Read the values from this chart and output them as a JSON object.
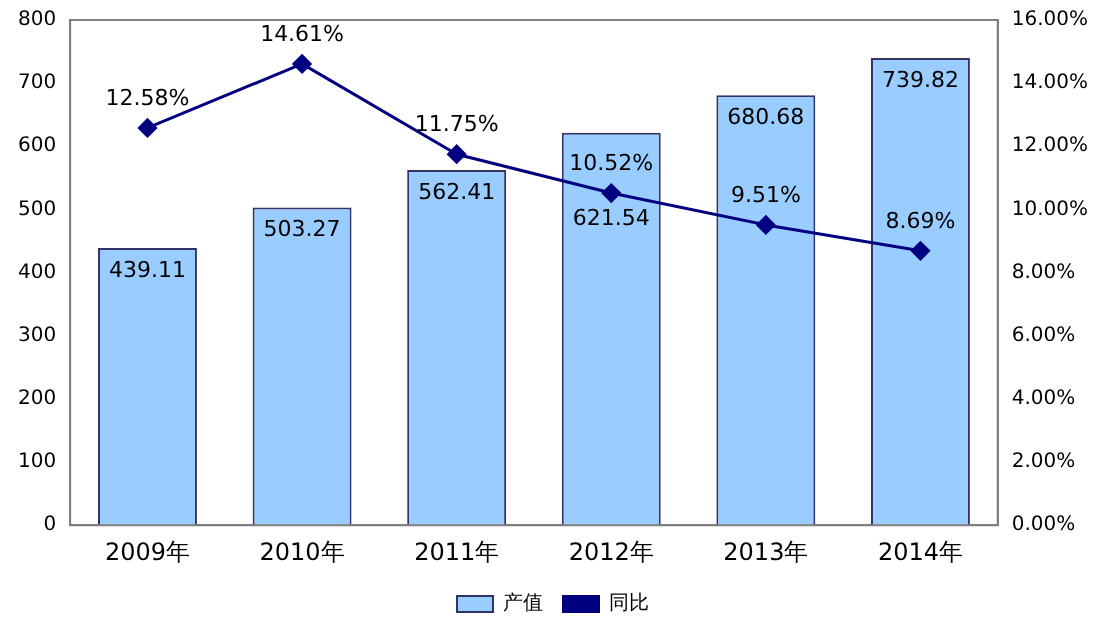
{
  "chart_data": {
    "type": "bar",
    "categories": [
      "2009年",
      "2010年",
      "2011年",
      "2012年",
      "2013年",
      "2014年"
    ],
    "series": [
      {
        "name": "产值",
        "color": "#99ccff",
        "values": [
          439.11,
          503.27,
          562.41,
          621.54,
          680.68,
          739.82
        ],
        "value_labels": [
          "439.11",
          "503.27",
          "562.41",
          "621.54",
          "680.68",
          "739.82"
        ]
      },
      {
        "name": "同比",
        "type": "line",
        "axis": "y2",
        "color": "#000080",
        "values": [
          12.58,
          14.61,
          11.75,
          10.52,
          9.51,
          8.69
        ],
        "value_labels": [
          "12.58%",
          "14.61%",
          "11.75%",
          "10.52%",
          "9.51%",
          "8.69%"
        ]
      }
    ],
    "ylim": [
      0,
      800
    ],
    "yticks": [
      0,
      100,
      200,
      300,
      400,
      500,
      600,
      700,
      800
    ],
    "y2lim": [
      0,
      16
    ],
    "y2ticks": [
      {
        "value": 0,
        "label": "0.00%"
      },
      {
        "value": 2,
        "label": "2.00%"
      },
      {
        "value": 4,
        "label": "4.00%"
      },
      {
        "value": 6,
        "label": "6.00%"
      },
      {
        "value": 8,
        "label": "8.00%"
      },
      {
        "value": 10,
        "label": "10.00%"
      },
      {
        "value": 12,
        "label": "12.00%"
      },
      {
        "value": 14,
        "label": "14.00%"
      },
      {
        "value": 16,
        "label": "16.00%"
      }
    ],
    "grid": false,
    "legend": "bottom",
    "marker": "diamond",
    "line_style": "solid"
  }
}
